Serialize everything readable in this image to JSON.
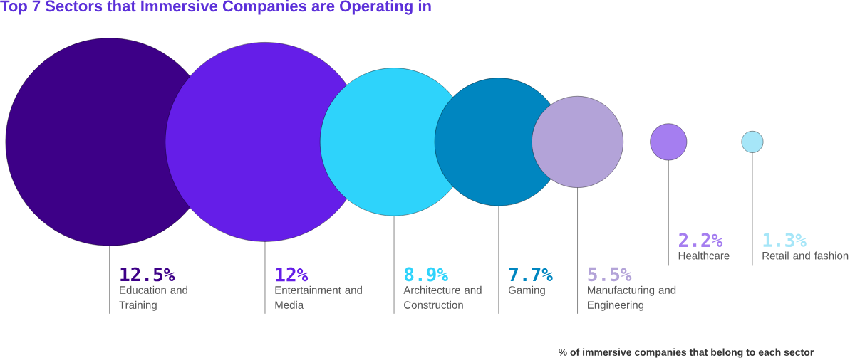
{
  "chart_data": {
    "type": "other",
    "title": "Top 7 Sectors that Immersive Companies are Operating in",
    "categories": [
      "Education and Training",
      "Entertainment and Media",
      "Architecture and Construction",
      "Gaming",
      "Manufacturing and Engineering",
      "Healthcare",
      "Retail and fashion"
    ],
    "values": [
      12.5,
      12,
      8.9,
      7.7,
      5.5,
      2.2,
      1.3
    ],
    "value_labels": [
      "12.5%",
      "12%",
      "8.9%",
      "7.7%",
      "5.5%",
      "2.2%",
      "1.3%"
    ],
    "colors": [
      "#3d0087",
      "#651ee8",
      "#2ed3fb",
      "#0086c0",
      "#b3a3d8",
      "#a57ef0",
      "#a6e6f8"
    ],
    "annotations": [
      "% of immersive companies that belong to each sector"
    ]
  }
}
